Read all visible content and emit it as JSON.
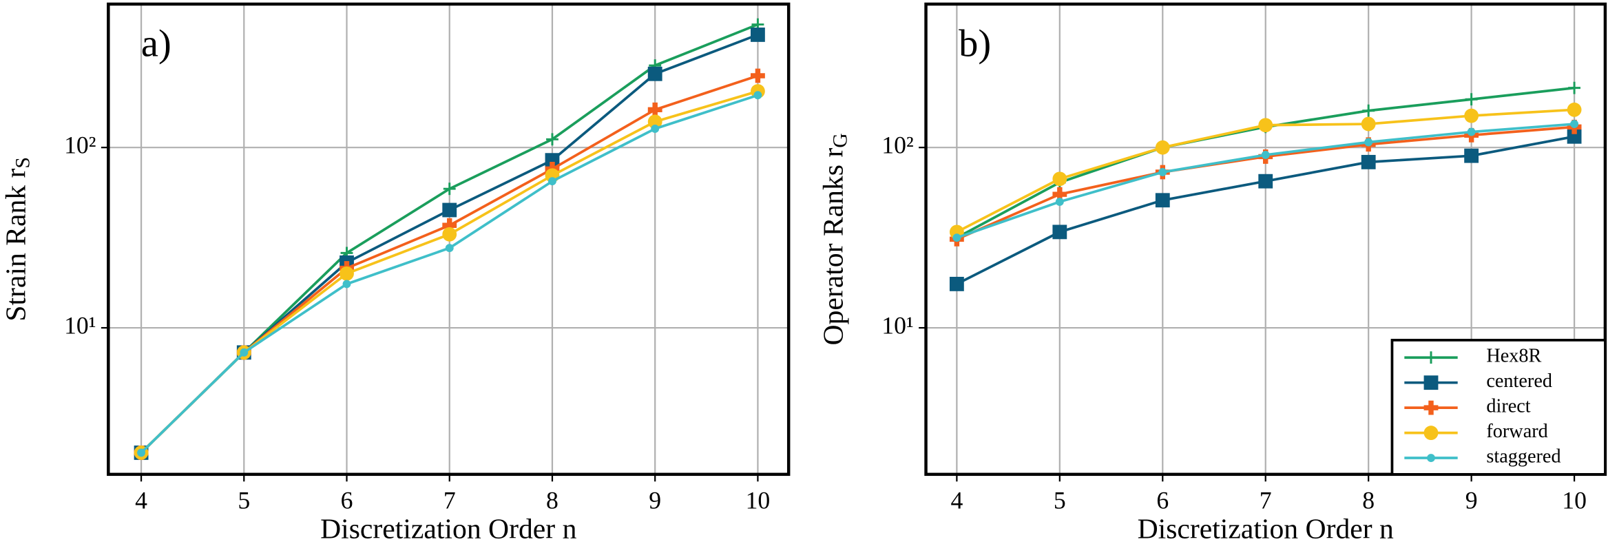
{
  "chart_data": [
    {
      "type": "line",
      "panel_label": "a)",
      "xlabel": "Discretization Order n",
      "ylabel": "Strain Rank r",
      "ylabel_subscript": "S",
      "log_y": true,
      "grid": true,
      "xlim": [
        3.68,
        10.3
      ],
      "xticks": [
        4,
        5,
        6,
        7,
        8,
        9,
        10
      ],
      "ylim": [
        1.54,
        624
      ],
      "yticks": [
        {
          "value": 10,
          "label": "10¹"
        },
        {
          "value": 100,
          "label": "10²"
        }
      ],
      "x": [
        4,
        5,
        6,
        7,
        8,
        9,
        10
      ],
      "series": [
        {
          "name": "Hex8R",
          "color": "#1a9e5c",
          "marker": "plus",
          "values": [
            2.03,
            7.3,
            26,
            59,
            111,
            285,
            481
          ]
        },
        {
          "name": "centered",
          "color": "#0b5a7e",
          "marker": "square",
          "values": [
            2.03,
            7.3,
            23,
            45,
            85,
            256,
            422
          ]
        },
        {
          "name": "direct",
          "color": "#f3601c",
          "marker": "cross",
          "values": [
            2.03,
            7.3,
            21.4,
            37,
            76,
            162,
            250
          ]
        },
        {
          "name": "forward",
          "color": "#f7c21a",
          "marker": "circle",
          "values": [
            2.03,
            7.3,
            20,
            33,
            70,
            139,
            205
          ]
        },
        {
          "name": "staggered",
          "color": "#3fbfc9",
          "marker": "dot",
          "values": [
            2.03,
            7.3,
            17.5,
            27.7,
            65,
            127,
            195
          ]
        }
      ]
    },
    {
      "type": "line",
      "panel_label": "b)",
      "xlabel": "Discretization Order n",
      "ylabel": "Operator Ranks r",
      "ylabel_subscript": "G",
      "log_y": true,
      "grid": true,
      "legend": "lower right",
      "xlim": [
        3.7,
        10.3
      ],
      "xticks": [
        4,
        5,
        6,
        7,
        8,
        9,
        10
      ],
      "ylim": [
        1.54,
        624
      ],
      "yticks": [
        {
          "value": 10,
          "label": "10¹"
        },
        {
          "value": 100,
          "label": "10²"
        }
      ],
      "x": [
        4,
        5,
        6,
        7,
        8,
        9,
        10
      ],
      "series": [
        {
          "name": "Hex8R",
          "color": "#1a9e5c",
          "marker": "plus",
          "values": [
            31.6,
            64,
            100,
            130,
            160,
            185,
            214
          ]
        },
        {
          "name": "centered",
          "color": "#0b5a7e",
          "marker": "square",
          "values": [
            17.5,
            34,
            51,
            65,
            83,
            90,
            115
          ]
        },
        {
          "name": "direct",
          "color": "#f3601c",
          "marker": "cross",
          "values": [
            31,
            55,
            73,
            89,
            104,
            117,
            130
          ]
        },
        {
          "name": "forward",
          "color": "#f7c21a",
          "marker": "circle",
          "values": [
            34,
            67,
            100,
            133,
            135,
            150,
            162
          ]
        },
        {
          "name": "staggered",
          "color": "#3fbfc9",
          "marker": "dot",
          "values": [
            31.6,
            50,
            73,
            91,
            107,
            122,
            135
          ]
        }
      ]
    }
  ]
}
